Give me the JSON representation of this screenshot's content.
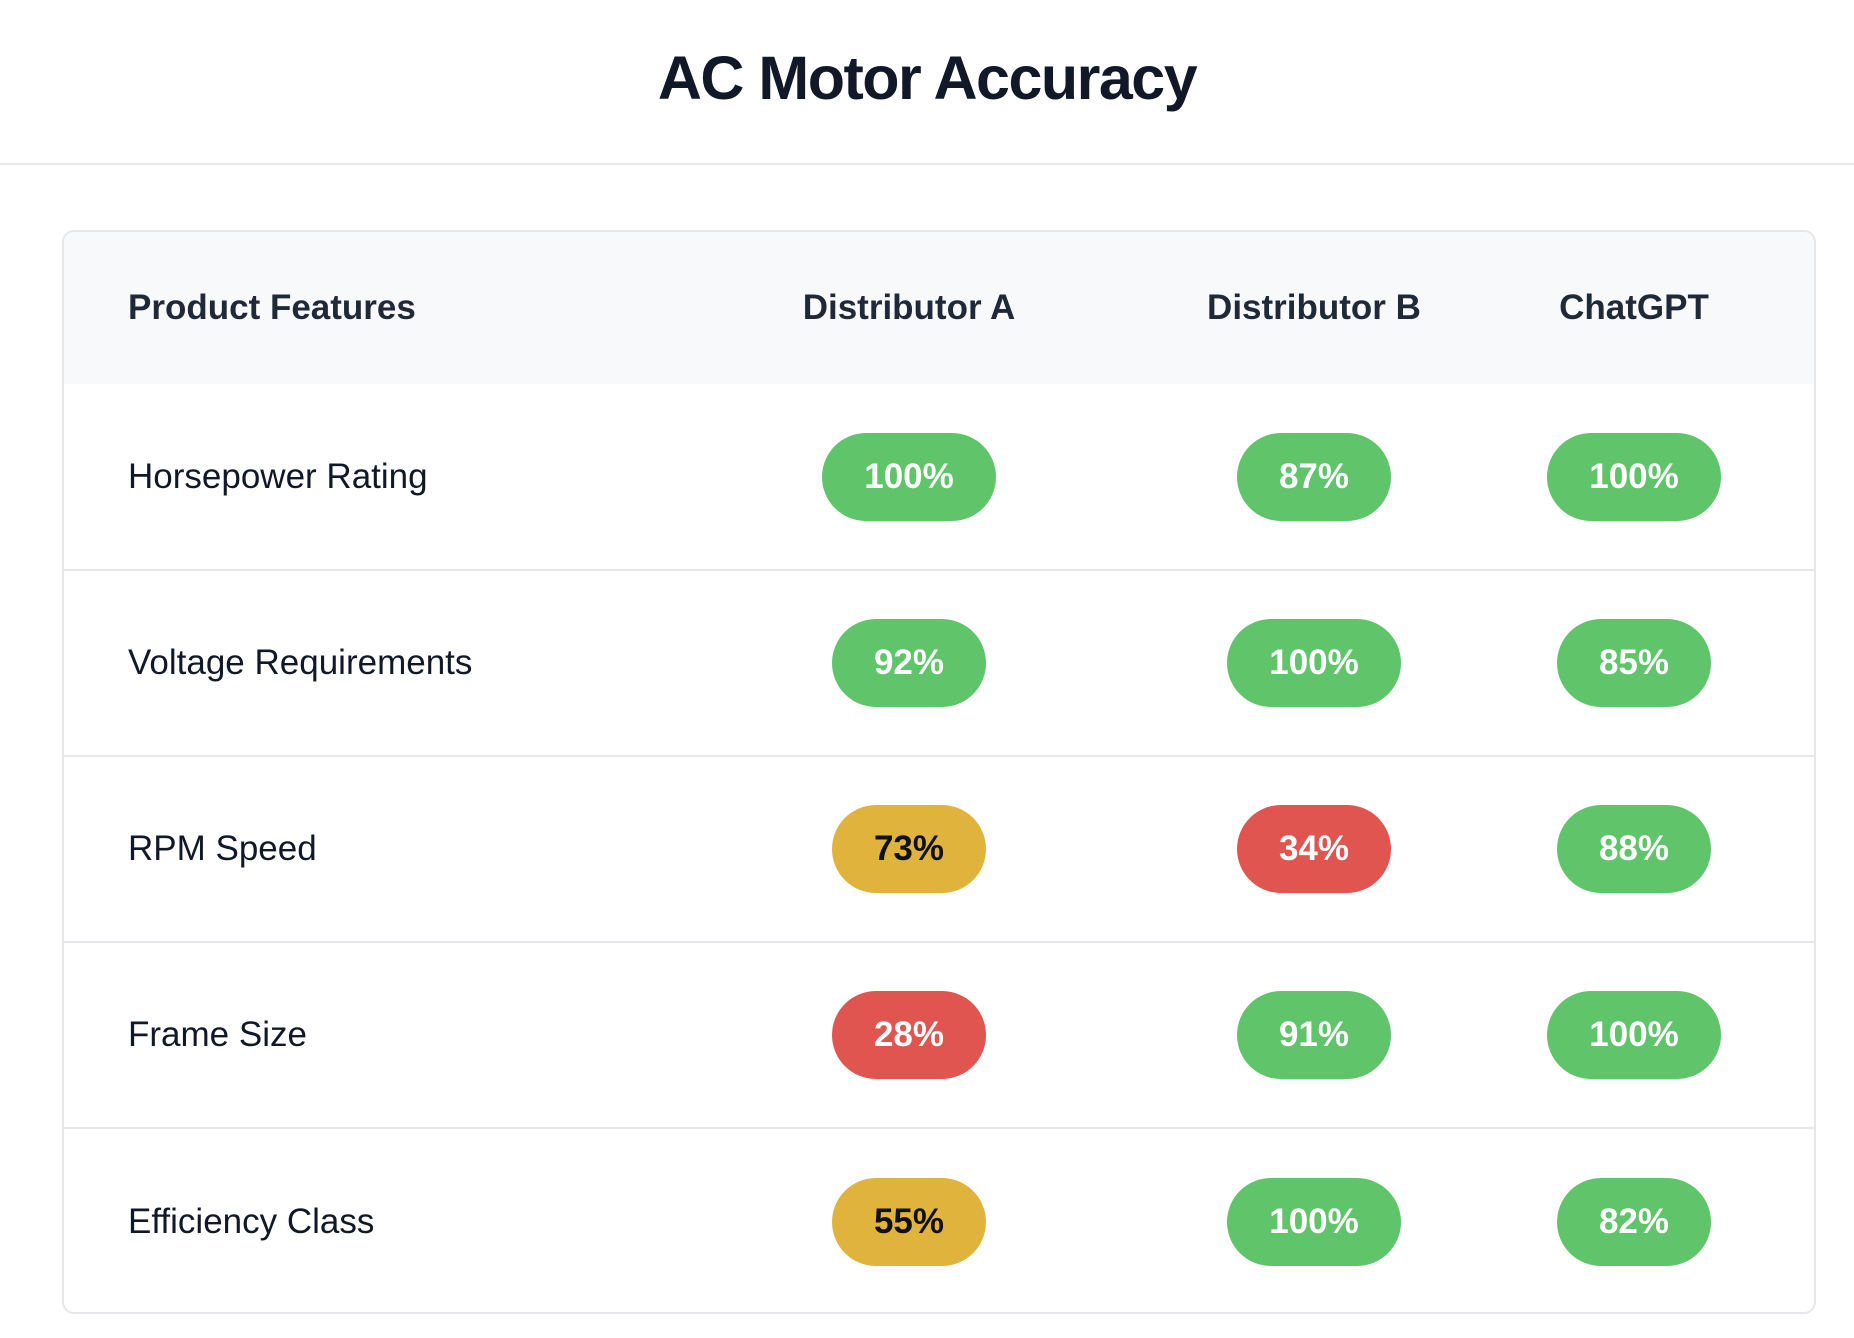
{
  "title": "AC Motor Accuracy",
  "colors": {
    "high": "#5fc46a",
    "medium": "#e0b43c",
    "low": "#e05550"
  },
  "table": {
    "headers": [
      "Product Features",
      "Distributor A",
      "Distributor B",
      "ChatGPT"
    ],
    "rows": [
      {
        "feature": "Horsepower Rating",
        "cells": [
          {
            "value": "100%",
            "level": "green"
          },
          {
            "value": "87%",
            "level": "green"
          },
          {
            "value": "100%",
            "level": "green"
          }
        ]
      },
      {
        "feature": "Voltage Requirements",
        "cells": [
          {
            "value": "92%",
            "level": "green"
          },
          {
            "value": "100%",
            "level": "green"
          },
          {
            "value": "85%",
            "level": "green"
          }
        ]
      },
      {
        "feature": "RPM Speed",
        "cells": [
          {
            "value": "73%",
            "level": "yellow"
          },
          {
            "value": "34%",
            "level": "red"
          },
          {
            "value": "88%",
            "level": "green"
          }
        ]
      },
      {
        "feature": "Frame Size",
        "cells": [
          {
            "value": "28%",
            "level": "red"
          },
          {
            "value": "91%",
            "level": "green"
          },
          {
            "value": "100%",
            "level": "green"
          }
        ]
      },
      {
        "feature": "Efficiency Class",
        "cells": [
          {
            "value": "55%",
            "level": "yellow"
          },
          {
            "value": "100%",
            "level": "green"
          },
          {
            "value": "82%",
            "level": "green"
          }
        ]
      }
    ]
  }
}
